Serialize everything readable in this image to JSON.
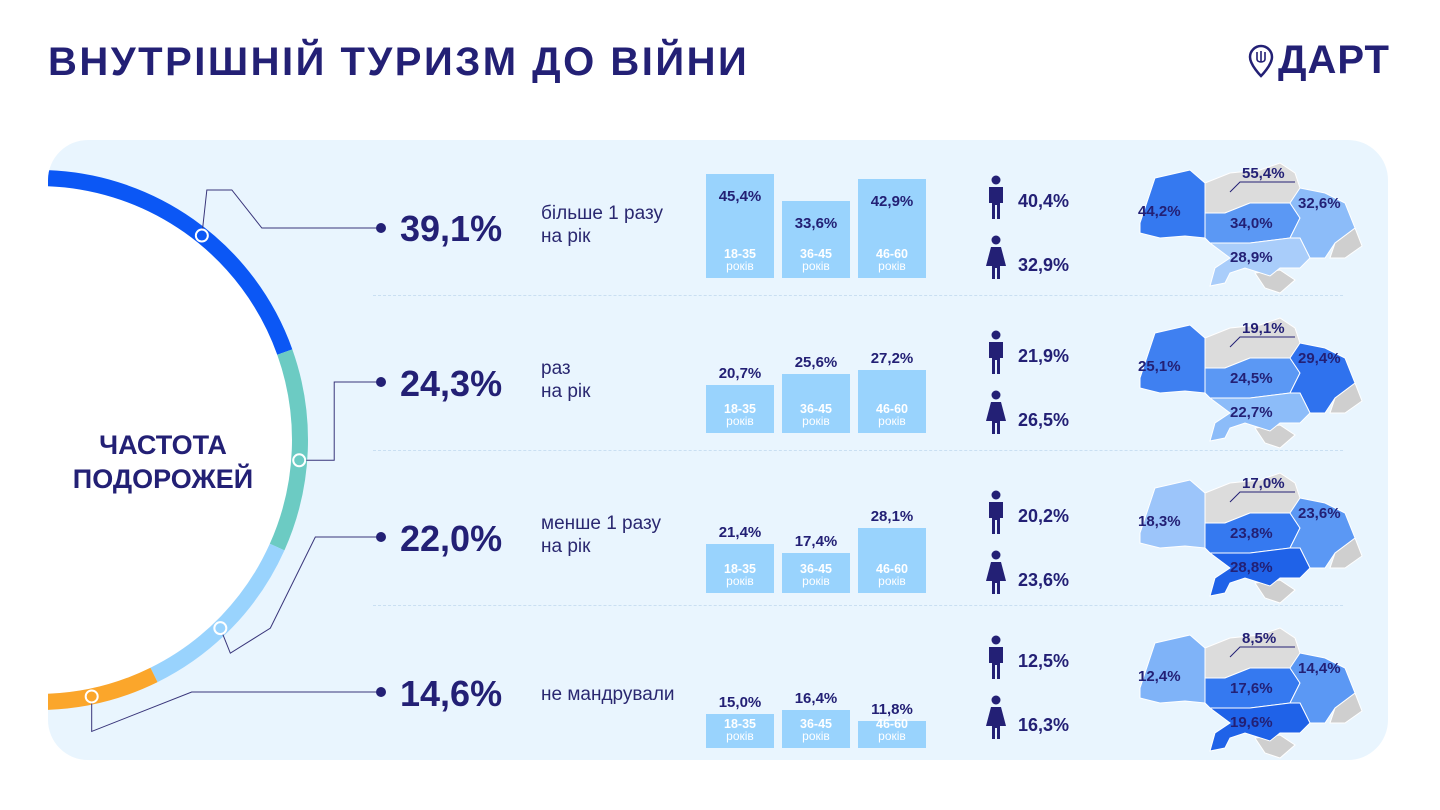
{
  "title": "ВНУТРІШНІЙ ТУРИЗМ ДО ВІЙНИ",
  "logo": {
    "text": "ДАРТ",
    "icon": "map-pin-trident-icon"
  },
  "ring_label": [
    "ЧАСТОТА",
    "ПОДОРОЖЕЙ"
  ],
  "colors": {
    "navy": "#232075",
    "bar": "#99d3fd",
    "panel": "#e9f5fe"
  },
  "chart_data": {
    "type": "bar",
    "title": "ВНУТРІШНІЙ ТУРИЗМ ДО ВІЙНИ",
    "categories": [
      "18-35",
      "36-45",
      "46-60"
    ],
    "category_unit": "років",
    "donut": {
      "label": "ЧАСТОТА ПОДОРОЖЕЙ",
      "slices": [
        {
          "label": "більше 1 разу на рік",
          "value": 39.1,
          "color": "#0b57f5"
        },
        {
          "label": "раз на рік",
          "value": 24.3,
          "color": "#6ccbc3"
        },
        {
          "label": "менше 1 разу на рік",
          "value": 22.0,
          "color": "#99d3fd"
        },
        {
          "label": "не мандрували",
          "value": 14.6,
          "color": "#fba62b"
        }
      ]
    },
    "rows": [
      {
        "total": "39,1%",
        "freq": [
          "більше 1 разу",
          "на рік"
        ],
        "bars": [
          45.4,
          33.6,
          42.9
        ],
        "bar_labels": [
          "45,4%",
          "33,6%",
          "42,9%"
        ],
        "male": "40,4%",
        "female": "32,9%",
        "regions": {
          "west": "44,2%",
          "north": "55,4%",
          "center": "34,0%",
          "east": "32,6%",
          "south": "28,9%"
        },
        "shades": {
          "west": "#3579f0",
          "north": "#dcdcdc",
          "center": "#5b98f4",
          "east": "#8cbcf9",
          "south": "#a9cdfa"
        }
      },
      {
        "total": "24,3%",
        "freq": [
          "раз",
          "на рік"
        ],
        "bars": [
          20.7,
          25.6,
          27.2
        ],
        "bar_labels": [
          "20,7%",
          "25,6%",
          "27,2%"
        ],
        "male": "21,9%",
        "female": "26,5%",
        "regions": {
          "west": "25,1%",
          "north": "19,1%",
          "center": "24,5%",
          "east": "29,4%",
          "south": "22,7%"
        },
        "shades": {
          "west": "#3f80f1",
          "north": "#dcdcdc",
          "center": "#5b98f4",
          "east": "#2f72ee",
          "south": "#8cbcf9"
        }
      },
      {
        "total": "22,0%",
        "freq": [
          "менше 1 разу",
          "на рік"
        ],
        "bars": [
          21.4,
          17.4,
          28.1
        ],
        "bar_labels": [
          "21,4%",
          "17,4%",
          "28,1%"
        ],
        "male": "20,2%",
        "female": "23,6%",
        "regions": {
          "west": "18,3%",
          "north": "17,0%",
          "center": "23,8%",
          "east": "23,6%",
          "south": "28,8%"
        },
        "shades": {
          "west": "#9cc5fa",
          "north": "#dcdcdc",
          "center": "#3579f0",
          "east": "#5b98f4",
          "south": "#1f62e8"
        }
      },
      {
        "total": "14,6%",
        "freq": [
          "не мандрували",
          ""
        ],
        "bars": [
          15.0,
          16.4,
          11.8
        ],
        "bar_labels": [
          "15,0%",
          "16,4%",
          "11,8%"
        ],
        "male": "12,5%",
        "female": "16,3%",
        "regions": {
          "west": "12,4%",
          "north": "8,5%",
          "center": "17,6%",
          "east": "14,4%",
          "south": "19,6%"
        },
        "shades": {
          "west": "#7fb3f8",
          "north": "#dcdcdc",
          "center": "#3579f0",
          "east": "#5b98f4",
          "south": "#1f62e8"
        }
      }
    ],
    "ylim": [
      0,
      50
    ]
  }
}
